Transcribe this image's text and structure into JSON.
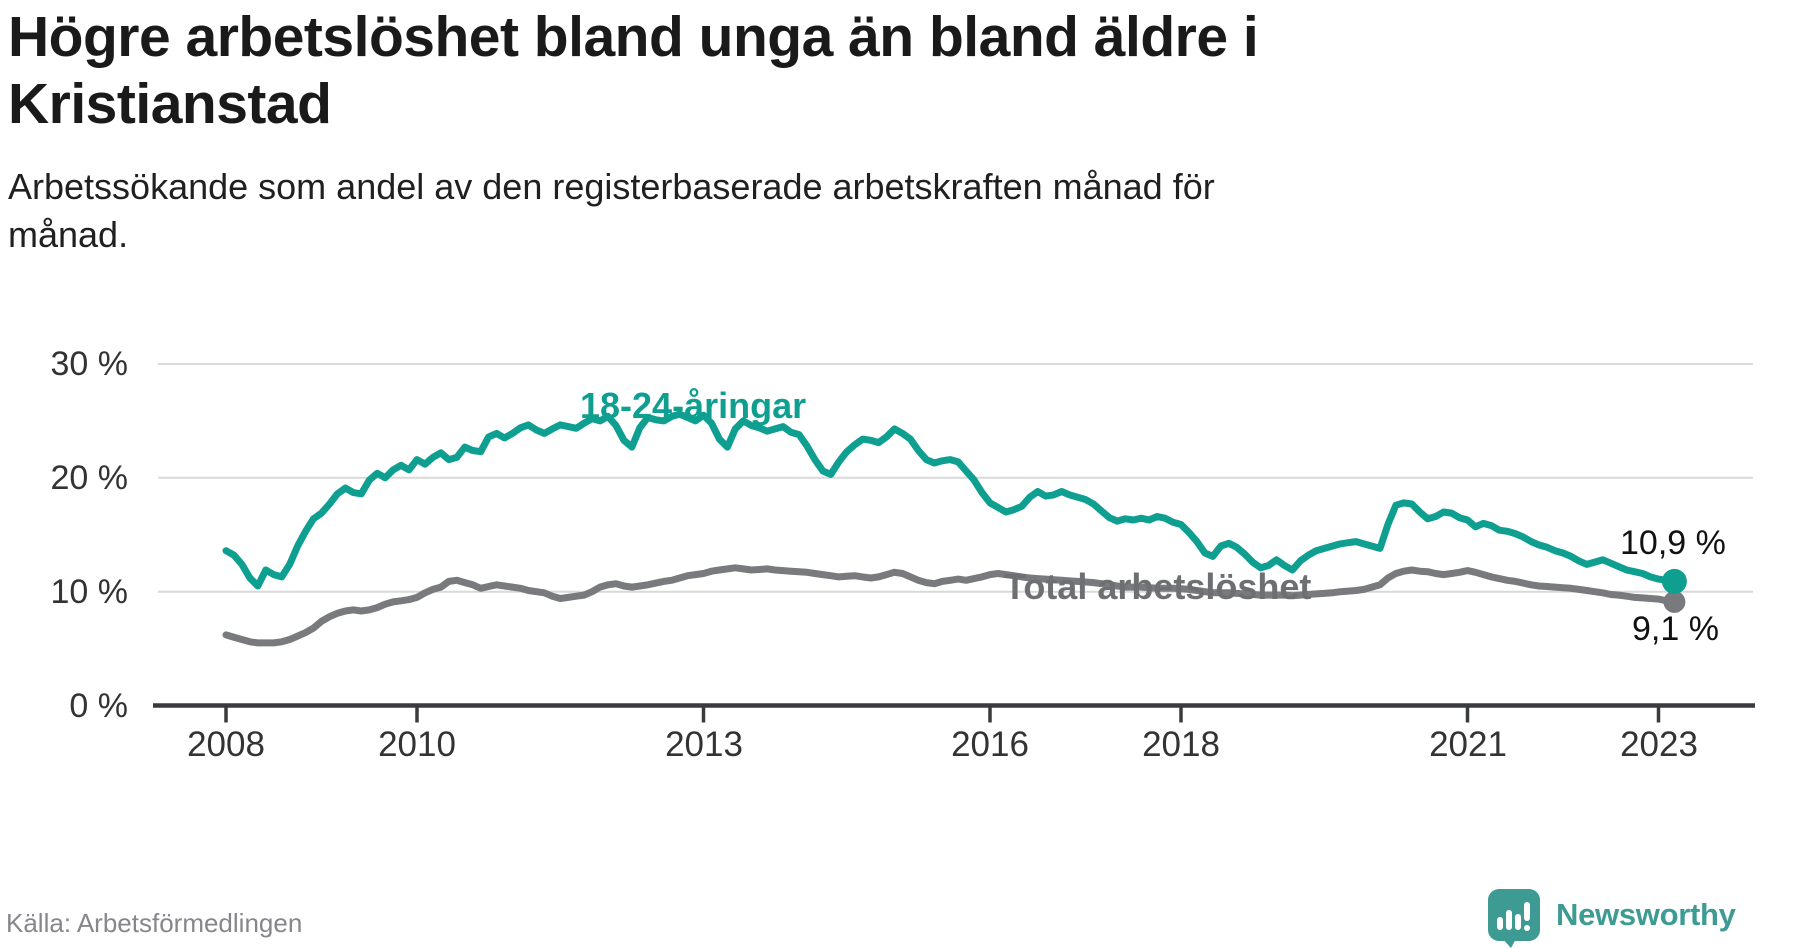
{
  "header": {
    "title_lines": [
      "Högre arbetslöshet bland unga än bland äldre i",
      "Kristianstad"
    ],
    "subtitle_lines": [
      "Arbetssökande som andel av den registerbaserade arbetskraften månad för",
      "månad."
    ]
  },
  "footer": {
    "source": "Källa: Arbetsförmedlingen",
    "brand": "Newsworthy"
  },
  "colors": {
    "young_series": "#0e9f90",
    "total_series": "#797a7e",
    "total_label": "#6e6f73",
    "grid": "#d9d9d9",
    "axis": "#3a3b3f",
    "tick_text": "#333333",
    "end_label_text": "#111111",
    "brand_teal": "#3d9b93"
  },
  "chart_data": {
    "type": "line",
    "title": "Högre arbetslöshet bland unga än bland äldre i Kristianstad",
    "subtitle": "Arbetssökande som andel av den registerbaserade arbetskraften månad för månad.",
    "xlabel": "",
    "ylabel": "",
    "ylim": [
      0,
      32
    ],
    "grid": "horizontal",
    "legend": "inline-labels",
    "x_start": "2008-01",
    "points_per_year": 12,
    "x_tick_years": [
      2008,
      2010,
      2013,
      2016,
      2018,
      2021,
      2023
    ],
    "x_tick_labels": [
      "2008",
      "2010",
      "2013",
      "2016",
      "2018",
      "2021",
      "2023"
    ],
    "y_ticks": [
      30,
      20,
      10,
      0
    ],
    "y_tick_labels": [
      "30 %",
      "20 %",
      "10 %",
      "0 %"
    ],
    "series": [
      {
        "name": "Total arbetslöshet",
        "color": "#797a7e",
        "end_label": "9,1 %",
        "end_value": 9.1,
        "values": [
          6.2,
          6.0,
          5.8,
          5.6,
          5.5,
          5.5,
          5.5,
          5.6,
          5.8,
          6.1,
          6.4,
          6.8,
          7.4,
          7.8,
          8.1,
          8.3,
          8.4,
          8.3,
          8.4,
          8.6,
          8.9,
          9.1,
          9.2,
          9.3,
          9.5,
          9.9,
          10.2,
          10.4,
          10.9,
          11.0,
          10.8,
          10.6,
          10.3,
          10.45,
          10.6,
          10.5,
          10.4,
          10.3,
          10.1,
          10.0,
          9.9,
          9.6,
          9.4,
          9.5,
          9.6,
          9.7,
          10.0,
          10.4,
          10.6,
          10.7,
          10.5,
          10.4,
          10.5,
          10.6,
          10.75,
          10.9,
          11.0,
          11.2,
          11.4,
          11.5,
          11.6,
          11.8,
          11.9,
          12.0,
          12.1,
          12.0,
          11.9,
          11.95,
          12.0,
          11.9,
          11.85,
          11.8,
          11.75,
          11.7,
          11.6,
          11.5,
          11.4,
          11.3,
          11.35,
          11.4,
          11.3,
          11.2,
          11.3,
          11.5,
          11.7,
          11.6,
          11.3,
          11.0,
          10.8,
          10.7,
          10.9,
          11.0,
          11.1,
          11.0,
          11.15,
          11.3,
          11.5,
          11.6,
          11.5,
          11.4,
          11.3,
          11.2,
          11.15,
          11.1,
          11.05,
          11.0,
          10.95,
          10.9,
          10.85,
          10.8,
          10.7,
          10.6,
          10.5,
          10.4,
          10.4,
          10.4,
          10.35,
          10.3,
          10.3,
          10.3,
          10.25,
          10.2,
          10.1,
          10.0,
          9.9,
          9.9,
          9.9,
          9.85,
          9.8,
          9.75,
          9.7,
          9.7,
          9.7,
          9.7,
          9.65,
          9.7,
          9.75,
          9.8,
          9.85,
          9.9,
          10.0,
          10.05,
          10.1,
          10.2,
          10.4,
          10.6,
          11.2,
          11.6,
          11.8,
          11.9,
          11.8,
          11.75,
          11.6,
          11.5,
          11.6,
          11.7,
          11.85,
          11.7,
          11.5,
          11.3,
          11.15,
          11.0,
          10.9,
          10.75,
          10.6,
          10.5,
          10.45,
          10.4,
          10.35,
          10.3,
          10.2,
          10.1,
          10.0,
          9.9,
          9.75,
          9.7,
          9.6,
          9.5,
          9.45,
          9.4,
          9.35,
          9.2,
          9.1
        ]
      },
      {
        "name": "18-24-åringar",
        "color": "#0e9f90",
        "end_label": "10,9 %",
        "end_value": 10.9,
        "values": [
          13.6,
          13.2,
          12.4,
          11.2,
          10.5,
          11.9,
          11.5,
          11.3,
          12.4,
          14.0,
          15.3,
          16.4,
          16.9,
          17.7,
          18.6,
          19.1,
          18.7,
          18.6,
          19.8,
          20.4,
          20.0,
          20.7,
          21.1,
          20.7,
          21.6,
          21.2,
          21.8,
          22.2,
          21.6,
          21.8,
          22.7,
          22.4,
          22.3,
          23.6,
          23.9,
          23.5,
          23.9,
          24.4,
          24.65,
          24.2,
          23.9,
          24.3,
          24.65,
          24.5,
          24.35,
          24.8,
          25.2,
          25.0,
          25.4,
          24.6,
          23.3,
          22.7,
          24.4,
          25.3,
          25.1,
          25.0,
          25.4,
          25.6,
          25.3,
          25.0,
          25.5,
          24.8,
          23.4,
          22.7,
          24.3,
          25.0,
          24.6,
          24.4,
          24.1,
          24.3,
          24.5,
          24.0,
          23.8,
          22.8,
          21.6,
          20.6,
          20.3,
          21.4,
          22.3,
          22.9,
          23.4,
          23.3,
          23.1,
          23.6,
          24.3,
          23.9,
          23.4,
          22.4,
          21.6,
          21.3,
          21.5,
          21.6,
          21.4,
          20.6,
          19.8,
          18.7,
          17.8,
          17.4,
          17.0,
          17.2,
          17.5,
          18.3,
          18.8,
          18.4,
          18.5,
          18.8,
          18.5,
          18.3,
          18.1,
          17.7,
          17.1,
          16.5,
          16.2,
          16.4,
          16.3,
          16.45,
          16.3,
          16.6,
          16.45,
          16.1,
          15.9,
          15.2,
          14.4,
          13.4,
          13.1,
          14.0,
          14.25,
          13.9,
          13.3,
          12.6,
          12.1,
          12.3,
          12.8,
          12.3,
          11.9,
          12.7,
          13.2,
          13.6,
          13.8,
          14.0,
          14.2,
          14.3,
          14.4,
          14.2,
          14.0,
          13.8,
          15.9,
          17.6,
          17.8,
          17.7,
          17.0,
          16.4,
          16.6,
          17.0,
          16.9,
          16.5,
          16.3,
          15.7,
          16.0,
          15.8,
          15.4,
          15.3,
          15.1,
          14.8,
          14.4,
          14.1,
          13.9,
          13.6,
          13.4,
          13.1,
          12.7,
          12.4,
          12.6,
          12.8,
          12.5,
          12.2,
          11.9,
          11.75,
          11.6,
          11.3,
          11.1,
          11.0,
          10.9
        ]
      }
    ]
  }
}
